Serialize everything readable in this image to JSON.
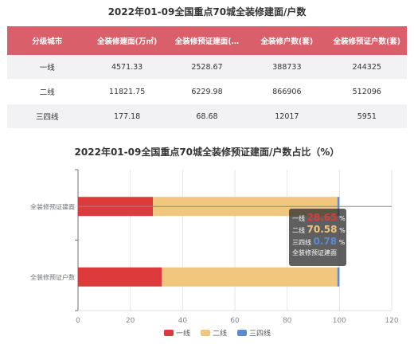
{
  "table": {
    "title": "2022年01-09全国重点70城全装修建面/户数",
    "headers": [
      "分级城市",
      "全装修建面(万㎡)",
      "全装修预证建面(…",
      "全装修户数(套)",
      "全装修预证户数(套)"
    ],
    "rows": [
      [
        "一线",
        "4571.33",
        "2528.67",
        "388733",
        "244325"
      ],
      [
        "二线",
        "11821.75",
        "6229.98",
        "866906",
        "512096"
      ],
      [
        "三四线",
        "177.18",
        "68.68",
        "12017",
        "5951"
      ]
    ]
  },
  "chart_data": {
    "type": "bar",
    "orientation": "horizontal",
    "stacked": true,
    "title": "2022年01-09全国重点70城全装修预证建面/户数占比（%）",
    "categories": [
      "全装修预证建面",
      "全装修预证户数"
    ],
    "series": [
      {
        "name": "一线",
        "color": "#dd3b3b",
        "values": [
          28.65,
          32.05
        ]
      },
      {
        "name": "二线",
        "color": "#f1c67f",
        "values": [
          70.58,
          67.17
        ]
      },
      {
        "name": "三四线",
        "color": "#5b8bd2",
        "values": [
          0.78,
          0.78
        ]
      }
    ],
    "xlim": [
      0,
      120
    ],
    "xticks": [
      "0",
      "20",
      "40",
      "60",
      "80",
      "100",
      "120"
    ],
    "grid": true,
    "legend_position": "bottom"
  },
  "tooltip": {
    "rows": [
      {
        "label": "一线",
        "value": "28.65",
        "unit": "%",
        "color": "#dd3b3b"
      },
      {
        "label": "二线",
        "value": "70.58",
        "unit": "%",
        "color": "#f1c67f"
      },
      {
        "label": "三四线",
        "value": "0.78",
        "unit": "%",
        "color": "#5b8bd2"
      }
    ],
    "category": "全装修预证建面"
  }
}
